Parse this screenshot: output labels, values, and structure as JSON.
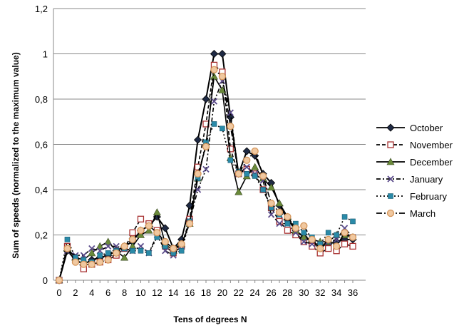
{
  "chart_data": {
    "type": "line",
    "title": "",
    "xlabel": "Tens of degrees N",
    "ylabel": "Sum of  speeds  (normalized  to  the  maximum  value)",
    "x": [
      0,
      1,
      2,
      3,
      4,
      5,
      6,
      7,
      8,
      9,
      10,
      11,
      12,
      13,
      14,
      15,
      16,
      17,
      18,
      19,
      20,
      21,
      22,
      23,
      24,
      25,
      26,
      27,
      28,
      29,
      30,
      31,
      32,
      33,
      34,
      35,
      36
    ],
    "xticks": [
      "0",
      "1",
      "2",
      "3",
      "4",
      "5",
      "6",
      "7",
      "8",
      "9",
      "10",
      "11",
      "12",
      "13",
      "14",
      "15",
      "16",
      "17",
      "18",
      "19",
      "20",
      "21",
      "22",
      "23",
      "24",
      "25",
      "26",
      "27",
      "28",
      "29",
      "30",
      "31",
      "32",
      "33",
      "34",
      "35",
      "36"
    ],
    "xtick_labels_shown": [
      "0",
      "2",
      "4",
      "6",
      "8",
      "10",
      "12",
      "14",
      "16",
      "18",
      "20",
      "22",
      "24",
      "26",
      "28",
      "30",
      "32",
      "34",
      "36"
    ],
    "ylim": [
      0,
      1.2
    ],
    "yticks": [
      "0",
      "0,2",
      "0,4",
      "0,6",
      "0,8",
      "1",
      "1,2"
    ],
    "grid": "horizontal",
    "legend_position": "right",
    "series": [
      {
        "name": "October",
        "color": "#1f2a44",
        "marker": "diamond",
        "dash": "solid",
        "values": [
          0,
          0.13,
          0.09,
          0.07,
          0.09,
          0.1,
          0.11,
          0.13,
          0.15,
          0.17,
          0.22,
          0.24,
          0.28,
          0.23,
          0.14,
          0.18,
          0.33,
          0.62,
          0.8,
          1.0,
          1.0,
          0.72,
          0.47,
          0.57,
          0.55,
          0.47,
          0.43,
          0.33,
          0.27,
          0.22,
          0.19,
          0.17,
          0.15,
          0.16,
          0.17,
          0.18,
          0.18
        ]
      },
      {
        "name": "November",
        "color": "#a83232",
        "marker": "square-open",
        "dash": "dash",
        "values": [
          0,
          0.15,
          0.09,
          0.05,
          0.07,
          0.08,
          0.09,
          0.11,
          0.14,
          0.21,
          0.27,
          0.25,
          0.22,
          0.15,
          0.12,
          0.15,
          0.27,
          0.5,
          0.69,
          0.95,
          0.92,
          0.58,
          0.47,
          0.49,
          0.47,
          0.4,
          0.32,
          0.26,
          0.22,
          0.2,
          0.17,
          0.15,
          0.12,
          0.14,
          0.13,
          0.16,
          0.15
        ]
      },
      {
        "name": "December",
        "color": "#6a8a3a",
        "marker": "triangle",
        "dash": "solid",
        "values": [
          0,
          0.14,
          0.1,
          0.09,
          0.12,
          0.15,
          0.17,
          0.13,
          0.1,
          0.15,
          0.2,
          0.22,
          0.3,
          0.16,
          0.13,
          0.16,
          0.25,
          0.45,
          0.6,
          0.9,
          0.84,
          0.54,
          0.39,
          0.46,
          0.5,
          0.45,
          0.41,
          0.34,
          0.28,
          0.22,
          0.19,
          0.18,
          0.17,
          0.17,
          0.2,
          0.2,
          0.19
        ]
      },
      {
        "name": "January",
        "color": "#5a4a8a",
        "marker": "x",
        "dash": "dashdot",
        "values": [
          0,
          0.13,
          0.11,
          0.11,
          0.14,
          0.13,
          0.15,
          0.15,
          0.14,
          0.13,
          0.15,
          0.12,
          0.2,
          0.13,
          0.11,
          0.15,
          0.26,
          0.4,
          0.49,
          0.79,
          0.88,
          0.74,
          0.47,
          0.5,
          0.47,
          0.44,
          0.29,
          0.25,
          0.25,
          0.21,
          0.17,
          0.16,
          0.15,
          0.17,
          0.18,
          0.23,
          0.19
        ]
      },
      {
        "name": "February",
        "color": "#2a8aa8",
        "marker": "square",
        "dash": "dot",
        "values": [
          0,
          0.18,
          0.1,
          0.09,
          0.08,
          0.11,
          0.12,
          0.13,
          0.14,
          0.13,
          0.13,
          0.12,
          0.19,
          0.15,
          0.12,
          0.13,
          0.26,
          0.45,
          0.61,
          0.69,
          0.67,
          0.53,
          0.48,
          0.47,
          0.46,
          0.4,
          0.32,
          0.29,
          0.25,
          0.25,
          0.21,
          0.19,
          0.16,
          0.21,
          0.2,
          0.28,
          0.26
        ]
      },
      {
        "name": "March",
        "color": "#d4955a",
        "marker": "circle-open",
        "dash": "longdash",
        "values": [
          0,
          0.14,
          0.08,
          0.07,
          0.07,
          0.08,
          0.09,
          0.12,
          0.15,
          0.18,
          0.22,
          0.24,
          0.21,
          0.17,
          0.14,
          0.16,
          0.25,
          0.47,
          0.59,
          0.93,
          0.9,
          0.68,
          0.47,
          0.53,
          0.57,
          0.46,
          0.34,
          0.3,
          0.28,
          0.23,
          0.24,
          0.18,
          0.14,
          0.18,
          0.15,
          0.21,
          0.19
        ]
      }
    ]
  }
}
